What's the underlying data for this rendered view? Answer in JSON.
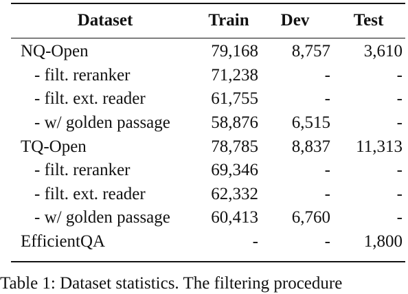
{
  "table": {
    "headers": {
      "dataset": "Dataset",
      "train": "Train",
      "dev": "Dev",
      "test": "Test"
    },
    "rows": [
      {
        "name": "NQ-Open",
        "train": "79,168",
        "dev": "8,757",
        "test": "3,610"
      },
      {
        "name": "- filt. reranker",
        "train": "71,238",
        "dev": "-",
        "test": "-"
      },
      {
        "name": "- filt. ext. reader",
        "train": "61,755",
        "dev": "-",
        "test": "-"
      },
      {
        "name": "- w/ golden passage",
        "train": "58,876",
        "dev": "6,515",
        "test": "-"
      },
      {
        "name": "TQ-Open",
        "train": "78,785",
        "dev": "8,837",
        "test": "11,313"
      },
      {
        "name": "- filt. reranker",
        "train": "69,346",
        "dev": "-",
        "test": "-"
      },
      {
        "name": "- filt. ext. reader",
        "train": "62,332",
        "dev": "-",
        "test": "-"
      },
      {
        "name": "- w/ golden passage",
        "train": "60,413",
        "dev": "6,760",
        "test": "-"
      },
      {
        "name": "EfficientQA",
        "train": "-",
        "dev": "-",
        "test": "1,800"
      }
    ]
  },
  "caption": "Table 1: Dataset statistics. The filtering procedure"
}
